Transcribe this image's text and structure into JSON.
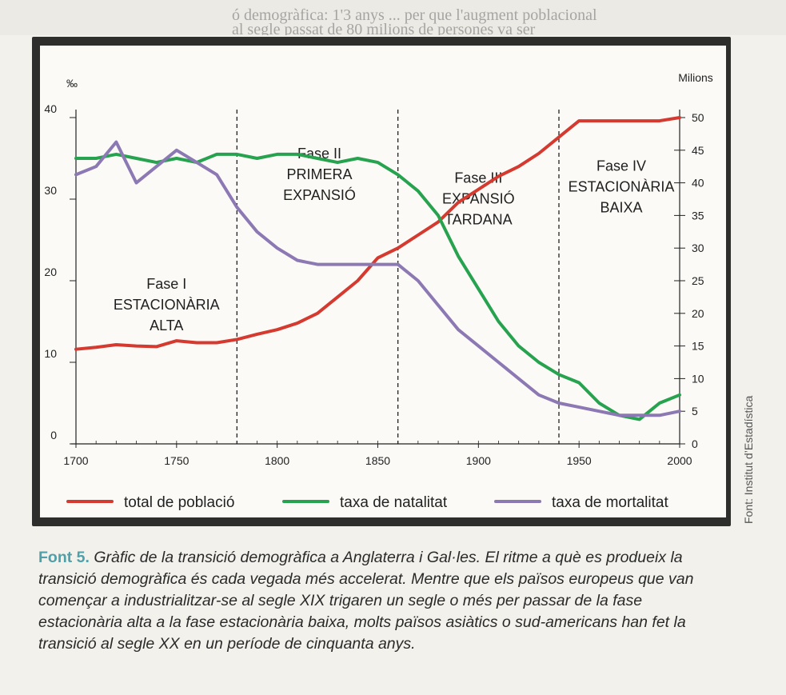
{
  "chart_data": {
    "type": "line",
    "x": [
      1700,
      1710,
      1720,
      1730,
      1740,
      1750,
      1760,
      1770,
      1780,
      1790,
      1800,
      1810,
      1820,
      1830,
      1840,
      1850,
      1860,
      1870,
      1880,
      1890,
      1900,
      1910,
      1920,
      1930,
      1940,
      1950,
      1960,
      1970,
      1980,
      1990,
      2000
    ],
    "series": [
      {
        "name": "total de població",
        "axis": "right",
        "color": "#d43a2f",
        "values": [
          14.5,
          14.8,
          15.2,
          15.0,
          14.9,
          15.8,
          15.5,
          15.5,
          16.0,
          16.8,
          17.5,
          18.5,
          20,
          22.5,
          25,
          28.5,
          30,
          32,
          34,
          37,
          39,
          41,
          42.5,
          44.5,
          47,
          49.5,
          49.5,
          49.5,
          49.5,
          49.5,
          50
        ]
      },
      {
        "name": "taxa de natalitat",
        "axis": "left",
        "color": "#27a24f",
        "values": [
          35,
          35,
          35.5,
          35,
          34.5,
          35,
          34.5,
          35.5,
          35.5,
          35,
          35.5,
          35.5,
          35,
          34.5,
          35,
          34.5,
          33,
          31,
          28,
          23,
          19,
          15,
          12,
          10,
          8.5,
          7.5,
          5,
          3.5,
          3,
          5,
          6
        ]
      },
      {
        "name": "taxa de mortalitat",
        "axis": "left",
        "color": "#8c79b4",
        "values": [
          33,
          34,
          37,
          32,
          34,
          36,
          34.5,
          33,
          29,
          26,
          24,
          22.5,
          22,
          22,
          22,
          22,
          22,
          20,
          17,
          14,
          12,
          10,
          8,
          6,
          5,
          4.5,
          4,
          3.5,
          3.5,
          3.5,
          4
        ]
      }
    ],
    "ylim_left": [
      0,
      40
    ],
    "yticks_left": [
      0,
      10,
      20,
      30,
      40
    ],
    "ylabel_left": "‰",
    "ylim_right": [
      0,
      50
    ],
    "yticks_right": [
      0,
      5,
      10,
      15,
      20,
      25,
      30,
      35,
      40,
      45,
      50
    ],
    "ylabel_right": "Milions",
    "xlim": [
      1700,
      2000
    ],
    "xticks": [
      1700,
      1750,
      1800,
      1850,
      1900,
      1950,
      2000
    ],
    "phase_dividers": [
      1780,
      1860,
      1940
    ],
    "phases": [
      {
        "lines": [
          "Fase I",
          "ESTACIONÀRIA",
          "ALTA"
        ],
        "x_center": 1745,
        "y_top": 19
      },
      {
        "lines": [
          "Fase II",
          "PRIMERA",
          "EXPANSIÓ"
        ],
        "x_center": 1821,
        "y_top": 35
      },
      {
        "lines": [
          "Fase III",
          "EXPANSIÓ",
          "TARDANA"
        ],
        "x_center": 1900,
        "y_top": 32
      },
      {
        "lines": [
          "Fase IV",
          "ESTACIONÀRIA",
          "BAIXA"
        ],
        "x_center": 1971,
        "y_top": 33.5
      }
    ]
  },
  "caption": {
    "label": "Font 5.",
    "text": "Gràfic de la transició demogràfica a Anglaterra i Gal·les. El ritme a què es produeix la transició demogràfica és cada vegada més accelerat. Mentre que els països europeus que van començar a industrialitzar-se al segle XIX trigaren un segle o més per passar de la fase estacionària alta a la fase estacionària baixa, molts països asiàtics o sud-americans han fet la transició al segle XX en un període de cinquanta anys."
  },
  "source": "Font: Institut d’Estadística",
  "header_bleed": {
    "line1": "ó demogràfica: 1'3 anys ... per que l'augment poblacional",
    "line2": "al segle passat de 80 milions de persones va ser"
  }
}
